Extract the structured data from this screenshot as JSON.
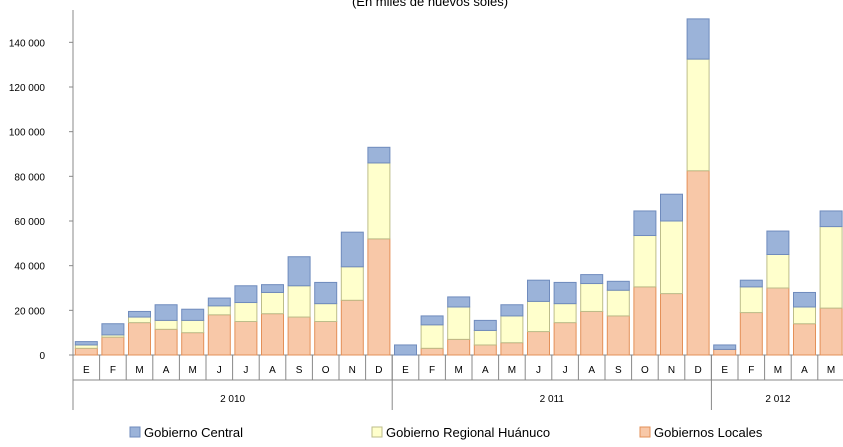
{
  "chart_data": {
    "type": "bar",
    "stacked": true,
    "title": "",
    "subtitle": "(En miles de nuevos soles)",
    "ylim": [
      0,
      150000
    ],
    "y_ticks": [
      "0",
      "20 000",
      "40 000",
      "60 000",
      "80 000",
      "100 000",
      "120 000",
      "140 000"
    ],
    "grid": false,
    "legend_position": "bottom",
    "year_groups": [
      {
        "label": "2 010",
        "months": [
          "E",
          "F",
          "M",
          "A",
          "M",
          "J",
          "J",
          "A",
          "S",
          "O",
          "N",
          "D"
        ]
      },
      {
        "label": "2 011",
        "months": [
          "E",
          "F",
          "M",
          "A",
          "M",
          "J",
          "J",
          "A",
          "S",
          "O",
          "N",
          "D"
        ]
      },
      {
        "label": "2 012",
        "months": [
          "E",
          "F",
          "M",
          "A",
          "M"
        ]
      }
    ],
    "series": [
      {
        "name": "Gobiernos Locales",
        "color": "#f8c8a8",
        "edge": "#e39058",
        "values": [
          3000,
          8000,
          14500,
          11500,
          10000,
          18000,
          15000,
          18500,
          17000,
          15000,
          24500,
          52000,
          0,
          3000,
          7000,
          4500,
          5500,
          10500,
          14500,
          19500,
          17500,
          30500,
          27500,
          82500,
          2500,
          19000,
          30000,
          14000,
          21000
        ]
      },
      {
        "name": "Gobierno Regional Huánuco",
        "color": "#ffffcc",
        "edge": "#bdbd8a",
        "values": [
          1500,
          1000,
          2500,
          4000,
          5500,
          4000,
          8500,
          9500,
          14000,
          8000,
          15000,
          34000,
          0,
          10500,
          14500,
          6500,
          12000,
          13500,
          8500,
          12500,
          11500,
          23000,
          32500,
          50000,
          0,
          11500,
          15000,
          7500,
          36500
        ]
      },
      {
        "name": "Gobierno Central",
        "color": "#9bb3d9",
        "edge": "#6f8bbd",
        "values": [
          1500,
          5000,
          2500,
          7000,
          5000,
          3500,
          7500,
          3500,
          13000,
          9500,
          15500,
          7000,
          4500,
          4000,
          4500,
          4500,
          5000,
          9500,
          9500,
          4000,
          4000,
          11000,
          12000,
          18000,
          2000,
          3000,
          10500,
          6500,
          7000
        ]
      }
    ]
  }
}
